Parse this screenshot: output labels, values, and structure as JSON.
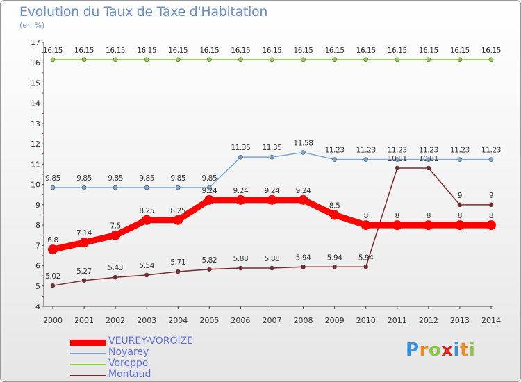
{
  "header": {
    "title": "Evolution du Taux de Taxe d'Habitation",
    "unit": "(en %)"
  },
  "logo": {
    "letters": [
      "P",
      "r",
      "o",
      "x",
      "i",
      "t",
      "i"
    ],
    "colors": [
      "#3b8fd6",
      "#f08a1c",
      "#8cc63f",
      "#e2231a",
      "#3b8fd6",
      "#f08a1c",
      "#8cc63f"
    ]
  },
  "chart_data": {
    "type": "line",
    "x": [
      "2000",
      "2001",
      "2002",
      "2003",
      "2004",
      "2005",
      "2006",
      "2007",
      "2008",
      "2009",
      "2010",
      "2011",
      "2012",
      "2013",
      "2014"
    ],
    "ylim": [
      4,
      17
    ],
    "yticks": [
      "4",
      "5",
      "6",
      "7",
      "8",
      "9",
      "10",
      "11",
      "12",
      "13",
      "14",
      "15",
      "16",
      "17"
    ],
    "grid": false,
    "legend_position": "bottom-left",
    "series": [
      {
        "name": "VEUREY-VOROIZE",
        "color": "#ff0000",
        "values": [
          6.8,
          7.14,
          7.5,
          8.25,
          8.25,
          9.24,
          9.24,
          9.24,
          9.24,
          8.5,
          8,
          8,
          8,
          8,
          8
        ],
        "labels": [
          "6.8",
          "7.14",
          "7.5",
          "8.25",
          "8.25",
          "9.24",
          "9.24",
          "9.24",
          "9.24",
          "8.5",
          "8",
          "8",
          "8",
          "8",
          "8"
        ]
      },
      {
        "name": "Noyarey",
        "color": "#77a7d4",
        "values": [
          9.85,
          9.85,
          9.85,
          9.85,
          9.85,
          9.85,
          11.35,
          11.35,
          11.58,
          11.23,
          11.23,
          11.23,
          11.23,
          11.23,
          11.23
        ],
        "labels": [
          "9.85",
          "9.85",
          "9.85",
          "9.85",
          "9.85",
          "9.85",
          "11.35",
          "11.35",
          "11.58",
          "11.23",
          "11.23",
          "11.23",
          "11.23",
          "11.23",
          "11.23"
        ]
      },
      {
        "name": "Voreppe",
        "color": "#8fd14f",
        "values": [
          16.15,
          16.15,
          16.15,
          16.15,
          16.15,
          16.15,
          16.15,
          16.15,
          16.15,
          16.15,
          16.15,
          16.15,
          16.15,
          16.15,
          16.15
        ],
        "labels": [
          "16.15",
          "16.15",
          "16.15",
          "16.15",
          "16.15",
          "16.15",
          "16.15",
          "16.15",
          "16.15",
          "16.15",
          "16.15",
          "16.15",
          "16.15",
          "16.15",
          "16.15"
        ]
      },
      {
        "name": "Montaud",
        "color": "#7a2a2a",
        "values": [
          5.02,
          5.27,
          5.43,
          5.54,
          5.71,
          5.82,
          5.88,
          5.88,
          5.94,
          5.94,
          5.94,
          10.81,
          10.81,
          9,
          9
        ],
        "labels": [
          "5.02",
          "5.27",
          "5.43",
          "5.54",
          "5.71",
          "5.82",
          "5.88",
          "5.88",
          "5.94",
          "5.94",
          "5.94",
          "10.81",
          "10.81",
          "9",
          "9"
        ]
      }
    ]
  }
}
